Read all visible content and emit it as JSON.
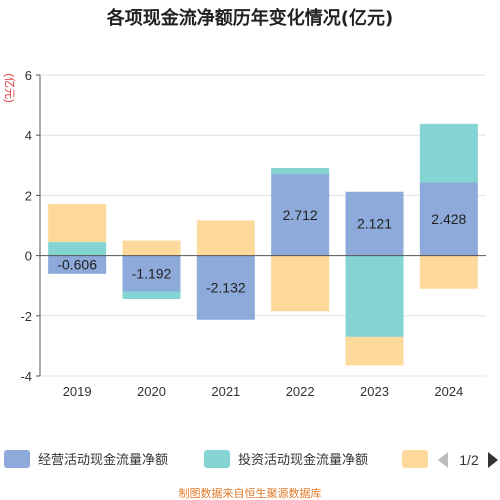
{
  "chart_data": {
    "type": "bar",
    "stacked": true,
    "title": "各项现金流净额历年变化情况(亿元)",
    "ylabel": "(亿元)",
    "xlabel": "",
    "categories": [
      "2019",
      "2020",
      "2021",
      "2022",
      "2023",
      "2024"
    ],
    "ylim": [
      -4,
      6
    ],
    "yticks": [
      -4,
      -2,
      0,
      2,
      4,
      6
    ],
    "grid": true,
    "legend_position": "bottom",
    "series": [
      {
        "name": "经营活动现金流量净额",
        "color": "#8eaadb",
        "values": [
          -0.606,
          -1.192,
          -2.132,
          2.712,
          2.121,
          2.428
        ],
        "labels": [
          "-0.606",
          "-1.192",
          "-2.132",
          "2.712",
          "2.121",
          "2.428"
        ]
      },
      {
        "name": "投资活动现金流量净额",
        "color": "#84d4d4",
        "values": [
          0.45,
          -0.25,
          0,
          0.2,
          -2.7,
          1.95
        ]
      },
      {
        "name": "",
        "color": "#fdd99b",
        "values": [
          1.27,
          0.5,
          1.17,
          -1.85,
          -0.95,
          -1.1
        ]
      }
    ]
  },
  "legend": {
    "pager_text": "1/2",
    "prev_icon": "triangle-left-icon",
    "next_icon": "triangle-right-icon",
    "prev_color": "#bbbbbb",
    "next_color": "#333333"
  },
  "source_text": "制图数据来自恒生聚源数据库"
}
